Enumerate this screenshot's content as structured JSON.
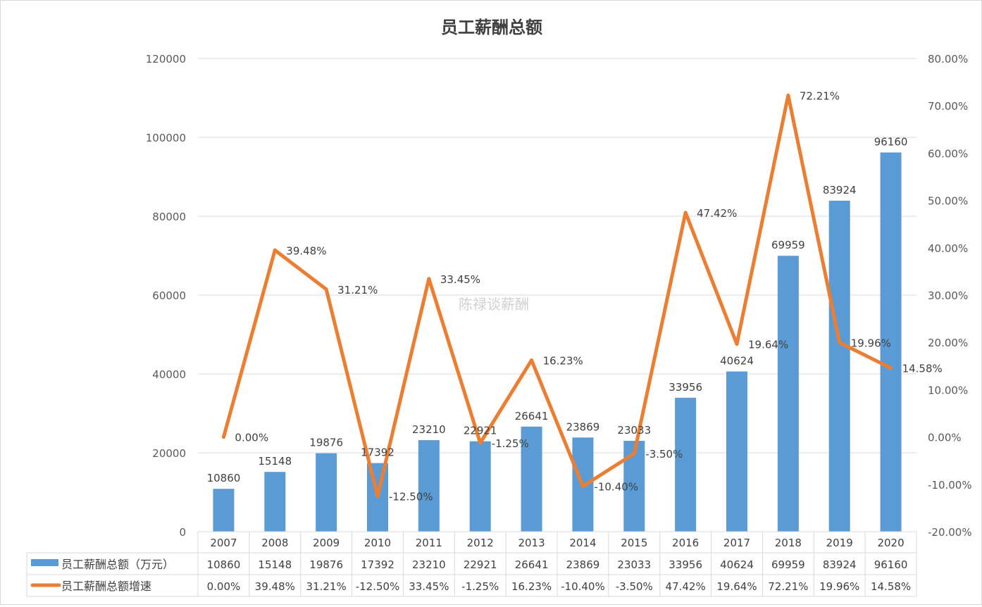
{
  "chart_data": {
    "type": "bar+line",
    "title": "员工薪酬总额",
    "watermark": "陈禄谈薪酬",
    "categories": [
      "2007",
      "2008",
      "2009",
      "2010",
      "2011",
      "2012",
      "2013",
      "2014",
      "2015",
      "2016",
      "2017",
      "2018",
      "2019",
      "2020"
    ],
    "series": [
      {
        "name": "员工薪酬总额（万元）",
        "type": "bar",
        "axis": "left",
        "color": "#5b9bd5",
        "values": [
          10860,
          15148,
          19876,
          17392,
          23210,
          22921,
          26641,
          23869,
          23033,
          33956,
          40624,
          69959,
          83924,
          96160
        ],
        "labels": [
          "10860",
          "15148",
          "19876",
          "17392",
          "23210",
          "22921",
          "26641",
          "23869",
          "23033",
          "33956",
          "40624",
          "69959",
          "83924",
          "96160"
        ]
      },
      {
        "name": "员工薪酬总额增速",
        "type": "line",
        "axis": "right",
        "color": "#ed7d31",
        "values": [
          0.0,
          39.48,
          31.21,
          -12.5,
          33.45,
          -1.25,
          16.23,
          -10.4,
          -3.5,
          47.42,
          19.64,
          72.21,
          19.96,
          14.58
        ],
        "labels": [
          "0.00%",
          "39.48%",
          "31.21%",
          "-12.50%",
          "33.45%",
          "-1.25%",
          "16.23%",
          "-10.40%",
          "-3.50%",
          "47.42%",
          "19.64%",
          "72.21%",
          "19.96%",
          "14.58%"
        ]
      }
    ],
    "left_axis": {
      "range": [
        0,
        120000
      ],
      "ticks": [
        "0",
        "20000",
        "40000",
        "60000",
        "80000",
        "100000",
        "120000"
      ]
    },
    "right_axis": {
      "range": [
        -20,
        80
      ],
      "ticks": [
        "-20.00%",
        "-10.00%",
        "0.00%",
        "10.00%",
        "20.00%",
        "30.00%",
        "40.00%",
        "50.00%",
        "60.00%",
        "70.00%",
        "80.00%"
      ]
    },
    "grid": true,
    "legend": "data-table"
  }
}
